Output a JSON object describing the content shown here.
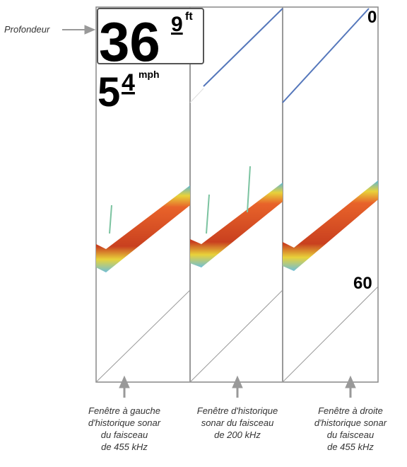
{
  "depth": {
    "label": "Profondeur",
    "whole": "36",
    "tenth": "9",
    "unit": "ft"
  },
  "speed": {
    "whole": "5",
    "tenth": "4",
    "unit": "mph"
  },
  "scale": {
    "top": "0",
    "bottom": "60"
  },
  "captions": [
    [
      "Fenêtre à gauche",
      "d'historique sonar",
      "du faisceau",
      "de 455 kHz"
    ],
    [
      "Fenêtre d'historique",
      "sonar du faisceau",
      "de 200 kHz"
    ],
    [
      "Fenêtre à droite",
      "d'historique sonar",
      "du faisceau",
      "de 455 kHz"
    ]
  ]
}
